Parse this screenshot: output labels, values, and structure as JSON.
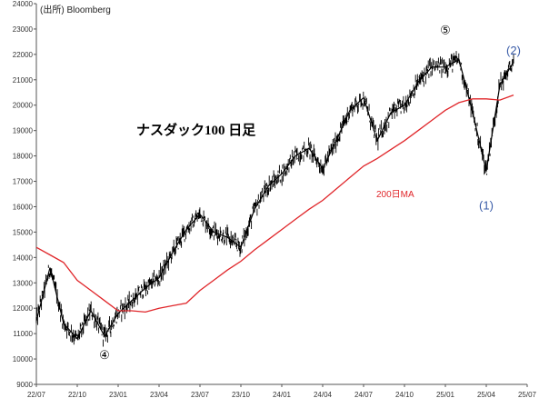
{
  "chart_data": {
    "type": "candlestick",
    "title": "ナスダック100 日足",
    "source": "(出所) Bloomberg",
    "ylim": [
      9000,
      24000
    ],
    "xlim": [
      "22/07",
      "25/07"
    ],
    "y_ticks": [
      9000,
      10000,
      11000,
      12000,
      13000,
      14000,
      15000,
      16000,
      17000,
      18000,
      19000,
      20000,
      21000,
      22000,
      23000,
      24000
    ],
    "x_ticks": [
      "22/07",
      "22/10",
      "23/01",
      "23/04",
      "23/07",
      "23/10",
      "24/01",
      "24/04",
      "24/07",
      "24/10",
      "25/01",
      "25/04",
      "25/07"
    ],
    "grid": false,
    "series": [
      {
        "name": "ナスダック100",
        "kind": "daily",
        "color": "#000000",
        "points": [
          [
            "22/07",
            11500
          ],
          [
            "22/08",
            13600
          ],
          [
            "22/09",
            11400
          ],
          [
            "22/10",
            10800
          ],
          [
            "22/11",
            11900
          ],
          [
            "22/12",
            10900
          ],
          [
            "23/01",
            11800
          ],
          [
            "23/02",
            12300
          ],
          [
            "23/03",
            12800
          ],
          [
            "23/04",
            13200
          ],
          [
            "23/05",
            14200
          ],
          [
            "23/06",
            15100
          ],
          [
            "23/07",
            15700
          ],
          [
            "23/08",
            15000
          ],
          [
            "23/09",
            14800
          ],
          [
            "23/10",
            14400
          ],
          [
            "23/11",
            15900
          ],
          [
            "23/12",
            16800
          ],
          [
            "24/01",
            17300
          ],
          [
            "24/02",
            18000
          ],
          [
            "24/03",
            18300
          ],
          [
            "24/04",
            17500
          ],
          [
            "24/05",
            18600
          ],
          [
            "24/06",
            19800
          ],
          [
            "24/07",
            20300
          ],
          [
            "24/08",
            18600
          ],
          [
            "24/09",
            19700
          ],
          [
            "24/10",
            20000
          ],
          [
            "24/11",
            20900
          ],
          [
            "24/12",
            21500
          ],
          [
            "25/01",
            21500
          ],
          [
            "25/02",
            21800
          ],
          [
            "25/03",
            19700
          ],
          [
            "25/04",
            17400
          ],
          [
            "25/05",
            20800
          ],
          [
            "25/06",
            21700
          ]
        ]
      },
      {
        "name": "200日MA",
        "kind": "moving-average",
        "color": "#e0262a",
        "points": [
          [
            "22/07",
            14400
          ],
          [
            "22/08",
            14100
          ],
          [
            "22/09",
            13800
          ],
          [
            "22/10",
            13100
          ],
          [
            "22/11",
            12700
          ],
          [
            "22/12",
            12300
          ],
          [
            "23/01",
            11900
          ],
          [
            "23/02",
            11900
          ],
          [
            "23/03",
            11850
          ],
          [
            "23/04",
            12000
          ],
          [
            "23/05",
            12100
          ],
          [
            "23/06",
            12200
          ],
          [
            "23/07",
            12700
          ],
          [
            "23/08",
            13100
          ],
          [
            "23/09",
            13500
          ],
          [
            "23/10",
            13850
          ],
          [
            "23/11",
            14300
          ],
          [
            "23/12",
            14700
          ],
          [
            "24/01",
            15100
          ],
          [
            "24/02",
            15500
          ],
          [
            "24/03",
            15900
          ],
          [
            "24/04",
            16250
          ],
          [
            "24/05",
            16700
          ],
          [
            "24/06",
            17150
          ],
          [
            "24/07",
            17600
          ],
          [
            "24/08",
            17900
          ],
          [
            "24/09",
            18250
          ],
          [
            "24/10",
            18600
          ],
          [
            "24/11",
            19000
          ],
          [
            "24/12",
            19400
          ],
          [
            "25/01",
            19800
          ],
          [
            "25/02",
            20100
          ],
          [
            "25/03",
            20250
          ],
          [
            "25/04",
            20250
          ],
          [
            "25/05",
            20200
          ],
          [
            "25/06",
            20400
          ]
        ]
      }
    ],
    "annotations": [
      {
        "text": "④",
        "x": "22/12",
        "y": 10000,
        "color": "#000000"
      },
      {
        "text": "⑤",
        "x": "25/01",
        "y": 22800,
        "color": "#000000"
      },
      {
        "text": "(1)",
        "x": "25/04",
        "y": 15900,
        "color": "#3a5ca8"
      },
      {
        "text": "(2)",
        "x": "25/06",
        "y": 22000,
        "color": "#3a5ca8"
      }
    ],
    "ma_label": "200日MA"
  }
}
